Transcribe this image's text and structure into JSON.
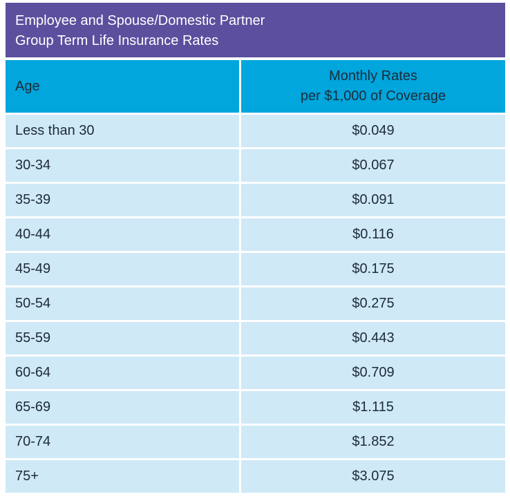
{
  "header": {
    "title_line1": "Employee and Spouse/Domestic Partner",
    "title_line2": "Group Term Life Insurance Rates"
  },
  "table": {
    "col_age": "Age",
    "col_rate_line1": "Monthly Rates",
    "col_rate_line2": "per $1,000 of Coverage",
    "rows": [
      {
        "age": "Less than 30",
        "rate": "$0.049"
      },
      {
        "age": "30-34",
        "rate": "$0.067"
      },
      {
        "age": "35-39",
        "rate": "$0.091"
      },
      {
        "age": "40-44",
        "rate": "$0.116"
      },
      {
        "age": "45-49",
        "rate": "$0.175"
      },
      {
        "age": "50-54",
        "rate": "$0.275"
      },
      {
        "age": "55-59",
        "rate": "$0.443"
      },
      {
        "age": "60-64",
        "rate": "$0.709"
      },
      {
        "age": "65-69",
        "rate": "$1.115"
      },
      {
        "age": "70-74",
        "rate": "$1.852"
      },
      {
        "age": "75+",
        "rate": "$3.075"
      }
    ]
  },
  "colors": {
    "title_background": "#5b4f9e",
    "header_background": "#00a6dc",
    "row_background": "#cfe9f6",
    "text": "#1d2a3a"
  }
}
